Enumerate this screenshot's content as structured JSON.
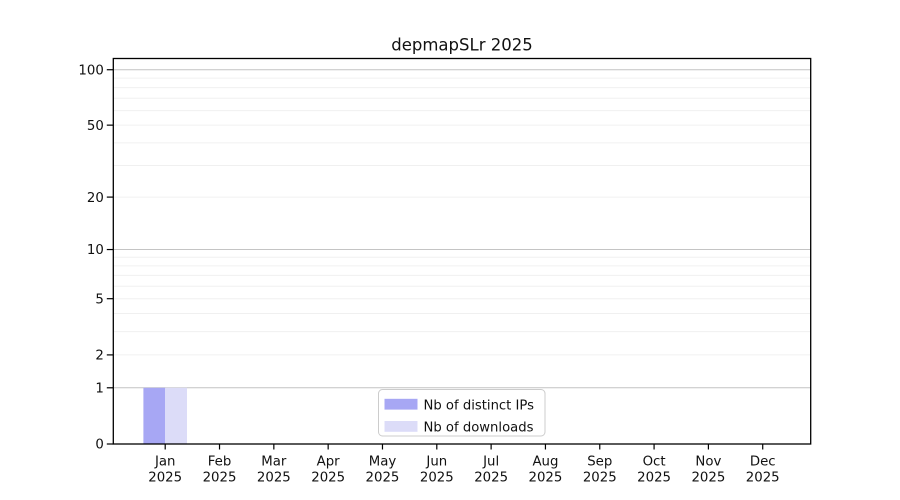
{
  "chart_data": {
    "type": "bar",
    "title": "depmapSLr 2025",
    "x_categories": [
      "Jan",
      "Feb",
      "Mar",
      "Apr",
      "May",
      "Jun",
      "Jul",
      "Aug",
      "Sep",
      "Oct",
      "Nov",
      "Dec"
    ],
    "x_sub_label": "2025",
    "series": [
      {
        "name": "Nb of distinct IPs",
        "color": "#a7a7f4",
        "values": [
          1,
          0,
          0,
          0,
          0,
          0,
          0,
          0,
          0,
          0,
          0,
          0
        ]
      },
      {
        "name": "Nb of downloads",
        "color": "#dcdcf8",
        "values": [
          1,
          0,
          0,
          0,
          0,
          0,
          0,
          0,
          0,
          0,
          0,
          0
        ]
      }
    ],
    "y_scale": "log10(1+y)",
    "y_ticks": [
      0,
      1,
      2,
      5,
      10,
      20,
      50,
      100
    ],
    "y_decade_gridlines": [
      1,
      10,
      100
    ],
    "y_minor_gridlines": [
      2,
      3,
      4,
      5,
      6,
      7,
      8,
      9,
      20,
      30,
      40,
      50,
      60,
      70,
      80,
      90
    ],
    "y_max": 115,
    "grid": true,
    "legend": {
      "position": "lower-center-inside",
      "entries": [
        "Nb of distinct IPs",
        "Nb of downloads"
      ]
    }
  },
  "style": {
    "background": "#ffffff",
    "spine_color": "#000000",
    "text_color": "#111111",
    "decade_grid_color": "#c4c4c4",
    "minor_grid_color": "#f0f0f0",
    "legend_border_color": "#cccccc",
    "legend_background": "#ffffff"
  }
}
